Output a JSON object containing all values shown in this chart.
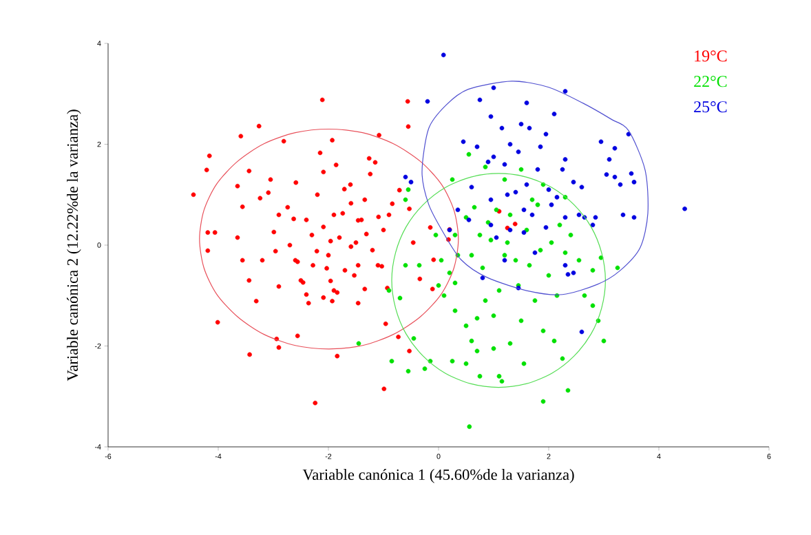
{
  "chart_data": {
    "type": "scatter",
    "xlabel": "Variable canónica 1 (45.60%de la varianza)",
    "ylabel": "Variable canónica 2 (12.22%de la varianza)",
    "xlim": [
      -6,
      6
    ],
    "ylim": [
      -4,
      4
    ],
    "xticks": [
      -6,
      -4,
      -2,
      0,
      2,
      4,
      6
    ],
    "yticks": [
      -4,
      -2,
      0,
      2,
      4
    ],
    "legend": "top right",
    "marker": "circle",
    "series": [
      {
        "name": "19°C",
        "color": "#ff0000",
        "x": [
          -4.45,
          -4.21,
          -4.16,
          -4.19,
          -4.06,
          -4.19,
          -4.01,
          -3.59,
          -3.26,
          -3.56,
          -3.65,
          -3.44,
          -3.65,
          -3.56,
          -3.44,
          -3.31,
          -3.43,
          -3.09,
          -3.05,
          -3.24,
          -2.99,
          -2.96,
          -2.9,
          -2.94,
          -2.9,
          -2.81,
          -2.74,
          -2.63,
          -2.59,
          -2.56,
          -2.46,
          -2.4,
          -2.36,
          -2.56,
          -2.15,
          -2.09,
          -1.93,
          -2.11,
          -1.86,
          -1.71,
          -1.59,
          -1.74,
          -1.96,
          -2.09,
          -2.21,
          -2.28,
          -2.03,
          -1.96,
          -1.84,
          -2.09,
          -1.93,
          -1.84,
          -2.24,
          -1.59,
          -1.46,
          -1.34,
          -1.24,
          -1.15,
          -1.26,
          -1.08,
          -1.09,
          -1.31,
          -1.46,
          -1.53,
          -1.34,
          -1.46,
          -1.03,
          -0.93,
          -0.96,
          -0.99,
          -0.84,
          -0.71,
          -0.55,
          -0.56,
          -0.53,
          -0.53,
          -0.73,
          -0.15,
          -0.11,
          -0.34,
          -0.46,
          -0.09,
          0.2,
          0.18,
          1.1,
          1.39,
          1.25,
          -2.3,
          -2.7,
          -1.8,
          -1.5,
          -1.2,
          -2.0,
          -2.6,
          -1.7,
          -1.4,
          -2.4,
          -1.9,
          -2.9,
          -3.2,
          -1.6,
          -2.2,
          -2.5,
          -1.9,
          -1.0,
          -0.9,
          -1.1
        ],
        "values": [
          1.0,
          1.49,
          1.77,
          0.25,
          0.25,
          -0.11,
          -1.53,
          2.16,
          2.36,
          0.76,
          1.17,
          1.47,
          0.15,
          -0.3,
          -0.7,
          -1.11,
          -2.17,
          1.04,
          1.3,
          0.93,
          0.26,
          -0.12,
          -0.82,
          -1.86,
          -2.03,
          2.06,
          0.75,
          0.52,
          1.24,
          -0.33,
          -0.74,
          -0.98,
          -1.15,
          -1.8,
          1.83,
          1.45,
          2.08,
          2.88,
          1.59,
          1.11,
          0.83,
          0.63,
          0.08,
          0.36,
          -0.12,
          -0.4,
          -0.46,
          -0.71,
          -0.94,
          -1.04,
          -1.11,
          -2.2,
          -3.13,
          -0.03,
          0.49,
          0.9,
          1.41,
          1.64,
          1.72,
          2.18,
          0.56,
          0.22,
          -0.4,
          -0.6,
          -0.87,
          -1.15,
          -0.42,
          -0.85,
          -1.56,
          -2.85,
          0.82,
          1.09,
          2.35,
          2.85,
          0.72,
          -2.1,
          -1.82,
          0.35,
          -0.87,
          -0.67,
          0.05,
          -0.29,
          0.31,
          0.11,
          0.67,
          0.42,
          0.34,
          0.2,
          0.0,
          0.15,
          0.05,
          -0.1,
          -0.2,
          -0.3,
          -0.5,
          0.5,
          0.5,
          0.6,
          0.6,
          -0.3,
          1.2,
          1.0,
          -0.7,
          -0.9,
          0.3,
          0.6,
          -0.4
        ]
      },
      {
        "name": "22°C",
        "color": "#00e000",
        "x": [
          0.56,
          1.9,
          2.35,
          1.1,
          1.15,
          0.75,
          1.55,
          2.25,
          -0.55,
          -0.25,
          -0.85,
          -0.45,
          -1.45,
          -0.7,
          -0.9,
          0.0,
          0.3,
          -0.35,
          -0.6,
          -0.05,
          0.3,
          0.05,
          0.6,
          0.8,
          0.5,
          0.65,
          1.05,
          0.95,
          1.25,
          1.4,
          1.65,
          1.85,
          2.05,
          2.2,
          2.4,
          2.55,
          2.8,
          3.25,
          2.95,
          1.8,
          2.3,
          1.9,
          1.5,
          1.2,
          0.85,
          0.55,
          0.25,
          -0.55,
          -0.6,
          1.45,
          1.1,
          0.85,
          1.75,
          2.15,
          2.65,
          2.8,
          2.9,
          0.3,
          0.5,
          0.7,
          1.0,
          1.5,
          1.9,
          2.1,
          0.25,
          0.5,
          0.7,
          1.3,
          1.0,
          0.6,
          3.0,
          -0.15,
          0.1,
          0.35,
          1.6,
          1.3,
          0.9,
          0.75,
          0.2,
          2.3,
          2.0,
          1.2,
          1.7
        ],
        "values": [
          -3.6,
          -3.1,
          -2.88,
          -2.6,
          -2.7,
          -2.6,
          -2.35,
          -2.25,
          -2.5,
          -2.45,
          -2.3,
          -1.85,
          -1.95,
          -1.05,
          -0.9,
          -0.8,
          -0.75,
          -0.4,
          -0.4,
          0.2,
          0.2,
          -0.3,
          -0.2,
          -0.45,
          0.55,
          0.75,
          0.7,
          0.1,
          0.05,
          -0.3,
          -0.4,
          -0.1,
          0.05,
          0.4,
          0.2,
          -0.3,
          -0.5,
          -0.45,
          -0.25,
          0.8,
          0.95,
          1.2,
          1.5,
          1.3,
          1.55,
          1.8,
          1.3,
          1.1,
          0.9,
          -0.8,
          -0.9,
          -1.1,
          -1.1,
          -1.0,
          -1.0,
          -1.2,
          -1.5,
          -1.3,
          -1.6,
          -1.45,
          -1.4,
          -1.5,
          -1.7,
          -1.9,
          -2.3,
          -2.35,
          -2.1,
          -1.95,
          -2.05,
          -1.9,
          -1.9,
          -2.3,
          -1.0,
          -0.2,
          0.3,
          0.6,
          0.45,
          0.2,
          -0.55,
          -0.15,
          -0.6,
          -0.2,
          0.9
        ]
      },
      {
        "name": "25°C",
        "color": "#0000e0",
        "x": [
          0.09,
          1.0,
          2.3,
          -0.2,
          0.75,
          1.6,
          0.95,
          1.15,
          1.5,
          1.65,
          2.1,
          1.95,
          1.3,
          0.45,
          0.7,
          0.9,
          1.0,
          1.45,
          1.85,
          1.2,
          1.8,
          2.3,
          2.25,
          2.45,
          2.6,
          1.6,
          1.4,
          1.25,
          0.6,
          0.95,
          2.15,
          2.05,
          2.55,
          2.3,
          1.95,
          1.55,
          1.3,
          0.95,
          0.55,
          0.35,
          2.65,
          2.85,
          3.05,
          3.2,
          3.3,
          3.5,
          3.55,
          3.1,
          3.45,
          2.95,
          3.2,
          3.35,
          3.55,
          4.47,
          2.6,
          2.35,
          2.45,
          1.2,
          1.45,
          0.8,
          1.75,
          -0.6,
          -0.5,
          0.2,
          2.8,
          1.05,
          1.7,
          2.0,
          1.55,
          2.3
        ],
        "values": [
          3.77,
          3.12,
          3.05,
          2.85,
          2.88,
          2.82,
          2.55,
          2.32,
          2.4,
          2.32,
          2.6,
          2.2,
          2.0,
          2.05,
          1.95,
          1.65,
          1.75,
          1.85,
          1.95,
          1.6,
          1.5,
          1.7,
          1.5,
          1.25,
          1.15,
          1.2,
          1.05,
          1.0,
          1.15,
          0.9,
          0.95,
          0.8,
          0.6,
          0.55,
          0.35,
          0.25,
          0.3,
          0.4,
          0.5,
          0.7,
          0.55,
          0.55,
          1.4,
          1.35,
          1.2,
          1.42,
          1.25,
          1.7,
          2.2,
          2.05,
          1.92,
          0.6,
          0.55,
          0.72,
          -1.72,
          -0.58,
          -0.55,
          -0.3,
          -0.85,
          -0.65,
          -0.15,
          1.35,
          1.25,
          0.3,
          0.4,
          0.15,
          0.6,
          1.1,
          0.7,
          -0.4
        ]
      }
    ]
  }
}
